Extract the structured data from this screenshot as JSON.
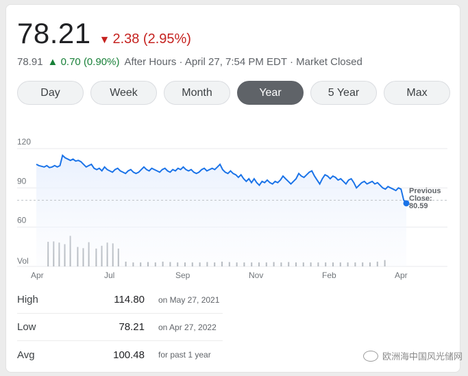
{
  "quote": {
    "price": "78.21",
    "change_arrow": "▼",
    "change": "2.38 (2.95%)",
    "after_hours_price": "78.91",
    "after_hours_arrow": "▲",
    "after_hours_change": "0.70 (0.90%)",
    "after_hours_meta": "After Hours · April 27, 7:54 PM EDT · Market Closed",
    "down_color": "#c5221f",
    "up_color": "#188038"
  },
  "tabs": [
    {
      "label": "Day",
      "active": false
    },
    {
      "label": "Week",
      "active": false
    },
    {
      "label": "Month",
      "active": false
    },
    {
      "label": "Year",
      "active": true
    },
    {
      "label": "5 Year",
      "active": false
    },
    {
      "label": "Max",
      "active": false
    }
  ],
  "chart_data": {
    "type": "line",
    "y_ticks": [
      "120",
      "90",
      "60"
    ],
    "y_tick_values": [
      120,
      90,
      60
    ],
    "ylim": [
      30,
      120
    ],
    "x_ticks": [
      "Apr",
      "Jul",
      "Sep",
      "Nov",
      "Feb",
      "Apr"
    ],
    "volume_label": "Vol",
    "line_color": "#1a73e8",
    "previous_close_label": [
      "Previous",
      "Close:",
      "80.59"
    ],
    "previous_close": 80.59,
    "series": [
      {
        "values": [
          108,
          107,
          106.5,
          106,
          107,
          105.5,
          106,
          107,
          106,
          107,
          114.8,
          113,
          112,
          111,
          112,
          110.5,
          111,
          110,
          108,
          106,
          107,
          108,
          105,
          104,
          105,
          103,
          106,
          104,
          103,
          102,
          104,
          105,
          103,
          102,
          101,
          103,
          104,
          102,
          101,
          102,
          104,
          106,
          104,
          103,
          105,
          104,
          103,
          102,
          104,
          105,
          103,
          102,
          104,
          103,
          105,
          104,
          106,
          104,
          103,
          104,
          102,
          101,
          102,
          104,
          105,
          103,
          104,
          105,
          104,
          106,
          108,
          104,
          102,
          101,
          103,
          101,
          100,
          98,
          100,
          97,
          95,
          97,
          94,
          97,
          94,
          92,
          95,
          94,
          96,
          94,
          93,
          95,
          94,
          96,
          99,
          97,
          95,
          93,
          95,
          97,
          101,
          99,
          98,
          100,
          102,
          103,
          99,
          96,
          93,
          97,
          100,
          99,
          97,
          99,
          98,
          96,
          97,
          95,
          93,
          96,
          97,
          94,
          90,
          92,
          94,
          95,
          93,
          94,
          95,
          93,
          94,
          92,
          90,
          89,
          91,
          90,
          89,
          88,
          90,
          89,
          80.6,
          78.21
        ]
      }
    ],
    "volume": [
      {
        "x": 0.03,
        "v": 0.62
      },
      {
        "x": 0.045,
        "v": 0.63
      },
      {
        "x": 0.06,
        "v": 0.6
      },
      {
        "x": 0.075,
        "v": 0.56
      },
      {
        "x": 0.09,
        "v": 0.77
      },
      {
        "x": 0.11,
        "v": 0.49
      },
      {
        "x": 0.125,
        "v": 0.46
      },
      {
        "x": 0.14,
        "v": 0.61
      },
      {
        "x": 0.16,
        "v": 0.45
      },
      {
        "x": 0.175,
        "v": 0.52
      },
      {
        "x": 0.19,
        "v": 0.6
      },
      {
        "x": 0.205,
        "v": 0.58
      },
      {
        "x": 0.22,
        "v": 0.45
      },
      {
        "x": 0.24,
        "v": 0.12
      },
      {
        "x": 0.26,
        "v": 0.1
      },
      {
        "x": 0.28,
        "v": 0.1
      },
      {
        "x": 0.3,
        "v": 0.11
      },
      {
        "x": 0.32,
        "v": 0.1
      },
      {
        "x": 0.34,
        "v": 0.12
      },
      {
        "x": 0.36,
        "v": 0.11
      },
      {
        "x": 0.38,
        "v": 0.1
      },
      {
        "x": 0.4,
        "v": 0.1
      },
      {
        "x": 0.42,
        "v": 0.1
      },
      {
        "x": 0.44,
        "v": 0.1
      },
      {
        "x": 0.46,
        "v": 0.11
      },
      {
        "x": 0.48,
        "v": 0.1
      },
      {
        "x": 0.5,
        "v": 0.12
      },
      {
        "x": 0.52,
        "v": 0.11
      },
      {
        "x": 0.54,
        "v": 0.1
      },
      {
        "x": 0.56,
        "v": 0.1
      },
      {
        "x": 0.58,
        "v": 0.1
      },
      {
        "x": 0.6,
        "v": 0.1
      },
      {
        "x": 0.62,
        "v": 0.1
      },
      {
        "x": 0.64,
        "v": 0.11
      },
      {
        "x": 0.66,
        "v": 0.1
      },
      {
        "x": 0.68,
        "v": 0.11
      },
      {
        "x": 0.7,
        "v": 0.1
      },
      {
        "x": 0.72,
        "v": 0.1
      },
      {
        "x": 0.74,
        "v": 0.1
      },
      {
        "x": 0.76,
        "v": 0.1
      },
      {
        "x": 0.78,
        "v": 0.1
      },
      {
        "x": 0.8,
        "v": 0.1
      },
      {
        "x": 0.82,
        "v": 0.1
      },
      {
        "x": 0.84,
        "v": 0.1
      },
      {
        "x": 0.86,
        "v": 0.1
      },
      {
        "x": 0.88,
        "v": 0.1
      },
      {
        "x": 0.9,
        "v": 0.1
      },
      {
        "x": 0.92,
        "v": 0.12
      },
      {
        "x": 0.94,
        "v": 0.16
      }
    ]
  },
  "stats": [
    {
      "label": "High",
      "value": "114.80",
      "note": "on May 27, 2021"
    },
    {
      "label": "Low",
      "value": "78.21",
      "note": "on Apr 27, 2022"
    },
    {
      "label": "Avg",
      "value": "100.48",
      "note": "for past 1 year"
    }
  ],
  "watermark": {
    "text": "欧洲海中国风光储网"
  }
}
